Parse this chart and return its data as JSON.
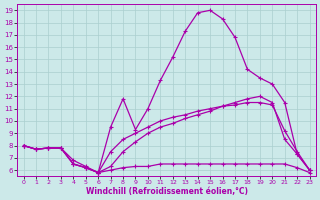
{
  "xlabel": "Windchill (Refroidissement éolien,°C)",
  "x_ticks": [
    0,
    1,
    2,
    3,
    4,
    5,
    6,
    7,
    8,
    9,
    10,
    11,
    12,
    13,
    14,
    15,
    16,
    17,
    18,
    19,
    20,
    21,
    22,
    23
  ],
  "y_ticks": [
    6,
    7,
    8,
    9,
    10,
    11,
    12,
    13,
    14,
    15,
    16,
    17,
    18,
    19
  ],
  "ylim": [
    5.5,
    19.5
  ],
  "xlim": [
    -0.5,
    23.5
  ],
  "bg_color": "#cce9e9",
  "grid_color": "#aacfcf",
  "line_color": "#aa00aa",
  "line1_y": [
    8.0,
    7.7,
    7.8,
    7.8,
    6.8,
    6.3,
    5.8,
    9.5,
    11.8,
    9.3,
    11.0,
    13.3,
    15.2,
    17.3,
    18.8,
    19.0,
    18.3,
    16.8,
    14.2,
    13.5,
    13.0,
    11.5,
    7.3,
    6.0
  ],
  "line2_y": [
    8.0,
    7.7,
    7.8,
    7.8,
    6.5,
    6.2,
    5.8,
    6.3,
    7.5,
    8.3,
    9.0,
    9.5,
    9.8,
    10.2,
    10.5,
    10.8,
    11.2,
    11.5,
    11.8,
    12.0,
    11.5,
    8.5,
    7.3,
    6.0
  ],
  "line3_y": [
    8.0,
    7.7,
    7.8,
    7.8,
    6.5,
    6.2,
    5.8,
    6.0,
    6.2,
    6.3,
    6.3,
    6.5,
    6.5,
    6.5,
    6.5,
    6.5,
    6.5,
    6.5,
    6.5,
    6.5,
    6.5,
    6.5,
    6.2,
    5.8
  ],
  "line4_y": [
    8.0,
    7.7,
    7.8,
    7.8,
    6.5,
    6.2,
    5.8,
    7.5,
    8.5,
    9.0,
    9.5,
    10.0,
    10.3,
    10.5,
    10.8,
    11.0,
    11.2,
    11.3,
    11.5,
    11.5,
    11.3,
    9.2,
    7.5,
    6.0
  ]
}
